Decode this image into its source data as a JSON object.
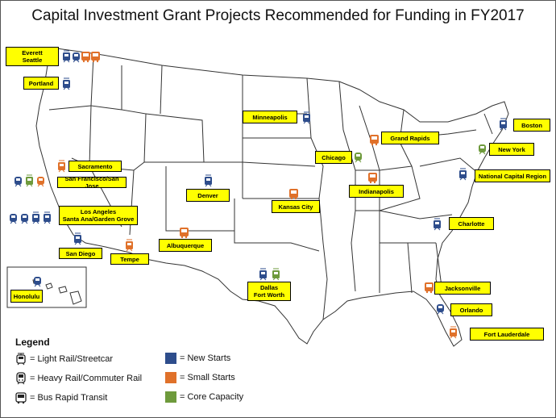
{
  "title": "Capital Investment Grant Projects Recommended for Funding in FY2017",
  "colors": {
    "new_starts": "#2e4d8c",
    "small_starts": "#e0712a",
    "core_capacity": "#6e9a3c",
    "label_bg": "#ffff00"
  },
  "cities": [
    {
      "id": "everett-seattle",
      "label": "Everett\nSeattle"
    },
    {
      "id": "portland",
      "label": "Portland"
    },
    {
      "id": "sacramento",
      "label": "Sacramento"
    },
    {
      "id": "san-francisco",
      "label": "San Francisco/San Jose"
    },
    {
      "id": "los-angeles",
      "label": "Los Angeles\nSanta Ana/Garden Grove"
    },
    {
      "id": "san-diego",
      "label": "San Diego"
    },
    {
      "id": "tempe",
      "label": "Tempe"
    },
    {
      "id": "honolulu",
      "label": "Honolulu"
    },
    {
      "id": "denver",
      "label": "Denver"
    },
    {
      "id": "albuquerque",
      "label": "Albuquerque"
    },
    {
      "id": "minneapolis",
      "label": "Minneapolis"
    },
    {
      "id": "kansas-city",
      "label": "Kansas City"
    },
    {
      "id": "dallas",
      "label": "Dallas\nFort Worth"
    },
    {
      "id": "chicago",
      "label": "Chicago"
    },
    {
      "id": "grand-rapids",
      "label": "Grand Rapids"
    },
    {
      "id": "indianapolis",
      "label": "Indianapolis"
    },
    {
      "id": "boston",
      "label": "Boston"
    },
    {
      "id": "new-york",
      "label": "New York"
    },
    {
      "id": "ncr",
      "label": "National Capital Region"
    },
    {
      "id": "charlotte",
      "label": "Charlotte"
    },
    {
      "id": "jacksonville",
      "label": "Jacksonville"
    },
    {
      "id": "orlando",
      "label": "Orlando"
    },
    {
      "id": "fort-lauderdale",
      "label": "Fort Lauderdale"
    }
  ],
  "legend": {
    "title": "Legend",
    "modes": [
      {
        "icon": "light-rail-icon",
        "label": "= Light Rail/Streetcar"
      },
      {
        "icon": "heavy-rail-icon",
        "label": "= Heavy Rail/Commuter Rail"
      },
      {
        "icon": "bus-icon",
        "label": "= Bus Rapid Transit"
      }
    ],
    "categories": [
      {
        "key": "new_starts",
        "label": "= New Starts"
      },
      {
        "key": "small_starts",
        "label": "= Small Starts"
      },
      {
        "key": "core_capacity",
        "label": "= Core Capacity"
      }
    ]
  }
}
